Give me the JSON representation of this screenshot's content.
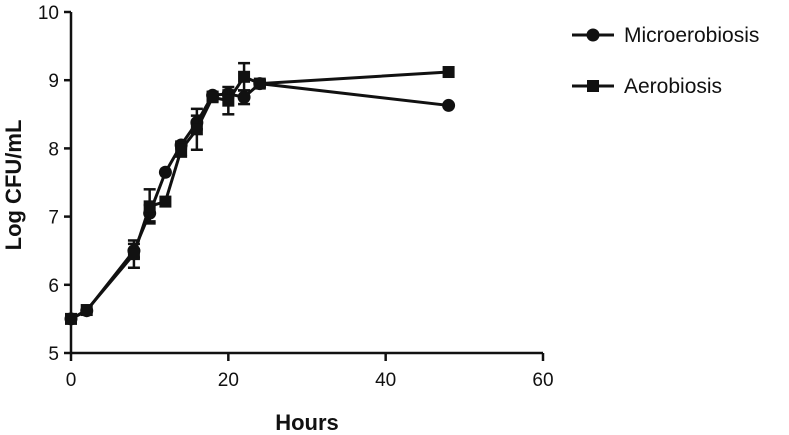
{
  "chart_data": {
    "type": "line",
    "title": "",
    "xlabel": "Hours",
    "ylabel": "Log CFU/mL",
    "xlim": [
      0,
      60
    ],
    "ylim": [
      5,
      10
    ],
    "x_ticks": [
      0,
      20,
      40,
      60
    ],
    "y_ticks": [
      5,
      6,
      7,
      8,
      9,
      10
    ],
    "x_tick_labels": [
      "0",
      "20",
      "40",
      "60"
    ],
    "y_tick_labels": [
      "5",
      "6",
      "7",
      "8",
      "9",
      "10"
    ],
    "grid": false,
    "legend_position": "top-right",
    "series": [
      {
        "name": "Microerobiosis",
        "marker": "circle",
        "color": "#111111",
        "x": [
          0,
          2,
          8,
          10,
          12,
          14,
          16,
          18,
          20,
          22,
          24,
          48
        ],
        "y": [
          5.5,
          5.62,
          6.5,
          7.05,
          7.65,
          8.05,
          8.38,
          8.78,
          8.8,
          8.75,
          8.95,
          8.63
        ],
        "error": [
          0.0,
          0.0,
          0.1,
          0.12,
          0.0,
          0.05,
          0.1,
          0.05,
          0.05,
          0.1,
          0.05,
          0.0
        ]
      },
      {
        "name": "Aerobiosis",
        "marker": "square",
        "color": "#111111",
        "x": [
          0,
          2,
          8,
          10,
          12,
          14,
          16,
          18,
          20,
          22,
          24,
          48
        ],
        "y": [
          5.5,
          5.63,
          6.45,
          7.15,
          7.22,
          7.98,
          8.28,
          8.75,
          8.7,
          9.05,
          8.95,
          9.12
        ],
        "error": [
          0.0,
          0.0,
          0.2,
          0.25,
          0.0,
          0.1,
          0.3,
          0.05,
          0.2,
          0.2,
          0.05,
          0.0
        ]
      }
    ]
  }
}
